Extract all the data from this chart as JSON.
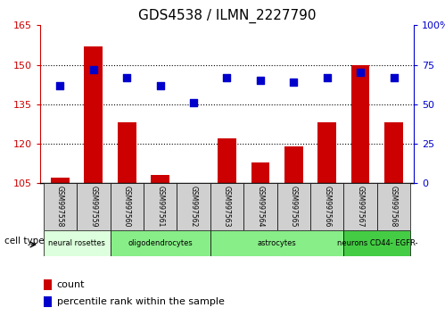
{
  "title": "GDS4538 / ILMN_2227790",
  "samples": [
    "GSM997558",
    "GSM997559",
    "GSM997560",
    "GSM997561",
    "GSM997562",
    "GSM997563",
    "GSM997564",
    "GSM997565",
    "GSM997566",
    "GSM997567",
    "GSM997568"
  ],
  "bar_values": [
    107,
    157,
    128,
    108,
    105,
    122,
    113,
    119,
    128,
    150,
    128
  ],
  "dot_values": [
    62,
    72,
    67,
    62,
    51,
    67,
    65,
    64,
    67,
    70,
    67
  ],
  "ymin": 105,
  "ymax": 165,
  "y2min": 0,
  "y2max": 100,
  "yticks": [
    105,
    120,
    135,
    150,
    165
  ],
  "y2ticks": [
    0,
    25,
    50,
    75,
    100
  ],
  "bar_color": "#cc0000",
  "dot_color": "#0000cc",
  "grid_yticks": [
    120,
    135,
    150
  ],
  "group_data": [
    {
      "label": "neural rosettes",
      "start": 0,
      "end": 2,
      "color": "#ddffdd"
    },
    {
      "label": "oligodendrocytes",
      "start": 2,
      "end": 5,
      "color": "#88ee88"
    },
    {
      "label": "astrocytes",
      "start": 5,
      "end": 9,
      "color": "#88ee88"
    },
    {
      "label": "neurons CD44- EGFR-",
      "start": 9,
      "end": 11,
      "color": "#44cc44"
    }
  ],
  "legend_count": "count",
  "legend_percentile": "percentile rank within the sample",
  "sample_box_color": "#d0d0d0"
}
